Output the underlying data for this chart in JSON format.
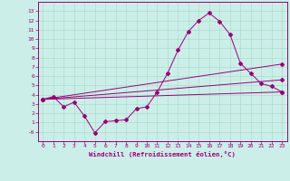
{
  "xlabel": "Windchill (Refroidissement éolien,°C)",
  "ylabel": "",
  "background_color": "#cceee8",
  "grid_color": "#aaddcc",
  "line_color": "#990077",
  "xlim": [
    -0.5,
    23.5
  ],
  "ylim": [
    -1,
    14
  ],
  "xticks": [
    0,
    1,
    2,
    3,
    4,
    5,
    6,
    7,
    8,
    9,
    10,
    11,
    12,
    13,
    14,
    15,
    16,
    17,
    18,
    19,
    20,
    21,
    22,
    23
  ],
  "yticks": [
    0,
    1,
    2,
    3,
    4,
    5,
    6,
    7,
    8,
    9,
    10,
    11,
    12,
    13
  ],
  "series1_x": [
    0,
    1,
    2,
    3,
    4,
    5,
    6,
    7,
    8,
    9,
    10,
    11,
    12,
    13,
    14,
    15,
    16,
    17,
    18,
    19,
    20,
    21,
    22,
    23
  ],
  "series1_y": [
    3.5,
    3.8,
    2.7,
    3.2,
    1.7,
    -0.1,
    1.1,
    1.2,
    1.3,
    2.5,
    2.7,
    4.3,
    6.3,
    8.8,
    10.8,
    12.0,
    12.8,
    11.9,
    10.5,
    7.4,
    6.3,
    5.2,
    4.9,
    4.3
  ],
  "series2_x": [
    0,
    23
  ],
  "series2_y": [
    3.5,
    7.3
  ],
  "series3_x": [
    0,
    23
  ],
  "series3_y": [
    3.5,
    5.6
  ],
  "series4_x": [
    0,
    23
  ],
  "series4_y": [
    3.5,
    4.3
  ]
}
